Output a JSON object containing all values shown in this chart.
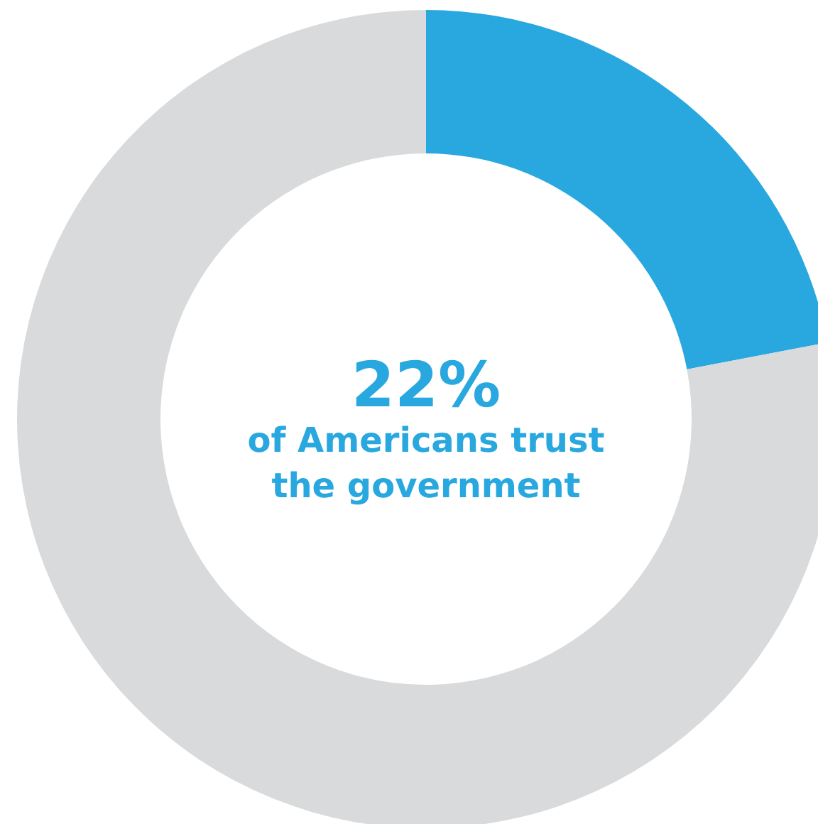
{
  "chart_data": {
    "type": "donut",
    "categories": [
      null,
      null
    ],
    "values": [
      22,
      78
    ],
    "colors": [
      "#29a8e0",
      "#d9dadc"
    ],
    "annotations": [
      "22%",
      "of Americans trust the government"
    ]
  }
}
